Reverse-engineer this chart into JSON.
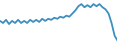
{
  "y_values": [
    22,
    20,
    23,
    19,
    22,
    20,
    23,
    20,
    22,
    20,
    23,
    21,
    23,
    21,
    24,
    22,
    24,
    23,
    25,
    24,
    26,
    25,
    27,
    26,
    29,
    32,
    36,
    38,
    35,
    37,
    35,
    38,
    36,
    38,
    35,
    33,
    29,
    20,
    8,
    3
  ],
  "line_color": "#3d8fbf",
  "line_width": 1.3,
  "background_color": "#ffffff",
  "ylim": [
    0,
    42
  ],
  "xlim": [
    0,
    39
  ]
}
